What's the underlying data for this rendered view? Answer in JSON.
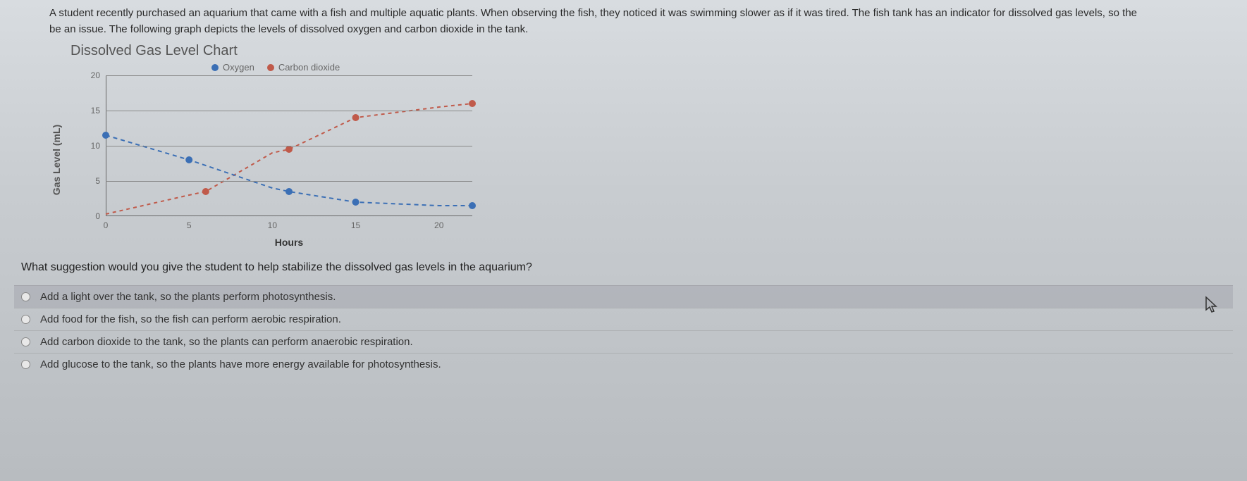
{
  "intro": {
    "line1": "A student recently purchased an aquarium that came with a fish and multiple aquatic plants. When observing the fish, they noticed it was swimming slower as if it was tired. The fish tank has an indicator for dissolved gas levels, so the",
    "line2": "be an issue. The following graph depicts the levels of dissolved oxygen and carbon dioxide in the tank."
  },
  "chart": {
    "title": "Dissolved Gas Level Chart",
    "legend": {
      "oxygen": {
        "label": "Oxygen",
        "color": "#3b6fb5"
      },
      "carbon": {
        "label": "Carbon dioxide",
        "color": "#c05a4a"
      }
    },
    "y_label": "Gas Level (mL)",
    "x_label": "Hours",
    "y_ticks": [
      "0",
      "5",
      "10",
      "15",
      "20"
    ],
    "x_ticks": [
      "0",
      "5",
      "10",
      "15",
      "20"
    ],
    "ylim": [
      0,
      20
    ],
    "xlim": [
      0,
      22
    ],
    "grid_color": "#888888",
    "background": "transparent",
    "series": {
      "oxygen": {
        "color": "#3b6fb5",
        "dash": "6,5",
        "marker_radius": 5,
        "points": [
          {
            "x": 0,
            "y": 11.5
          },
          {
            "x": 5,
            "y": 8
          },
          {
            "x": 10,
            "y": 4
          },
          {
            "x": 11,
            "y": 3.5
          },
          {
            "x": 15,
            "y": 2
          },
          {
            "x": 20,
            "y": 1.5
          },
          {
            "x": 22,
            "y": 1.5
          }
        ],
        "markers_at": [
          0,
          5,
          11,
          15,
          22
        ]
      },
      "carbon": {
        "color": "#c05a4a",
        "dash": "5,5",
        "marker_radius": 5,
        "points": [
          {
            "x": 0,
            "y": 0.3
          },
          {
            "x": 5,
            "y": 3
          },
          {
            "x": 6,
            "y": 3.5
          },
          {
            "x": 10,
            "y": 9
          },
          {
            "x": 11,
            "y": 9.5
          },
          {
            "x": 15,
            "y": 14
          },
          {
            "x": 20,
            "y": 15.5
          },
          {
            "x": 22,
            "y": 16
          }
        ],
        "markers_at": [
          6,
          11,
          15,
          22
        ]
      }
    }
  },
  "question": "What suggestion would you give the student to help stabilize the dissolved gas levels in the aquarium?",
  "answers": [
    {
      "text": "Add a light over the tank, so the plants perform photosynthesis.",
      "highlight": true
    },
    {
      "text": "Add food for the fish, so the fish can perform aerobic respiration.",
      "highlight": false
    },
    {
      "text": "Add carbon dioxide to the tank, so the plants can perform anaerobic respiration.",
      "highlight": false
    },
    {
      "text": "Add glucose to the tank, so the plants have more energy available for photosynthesis.",
      "highlight": false
    }
  ]
}
